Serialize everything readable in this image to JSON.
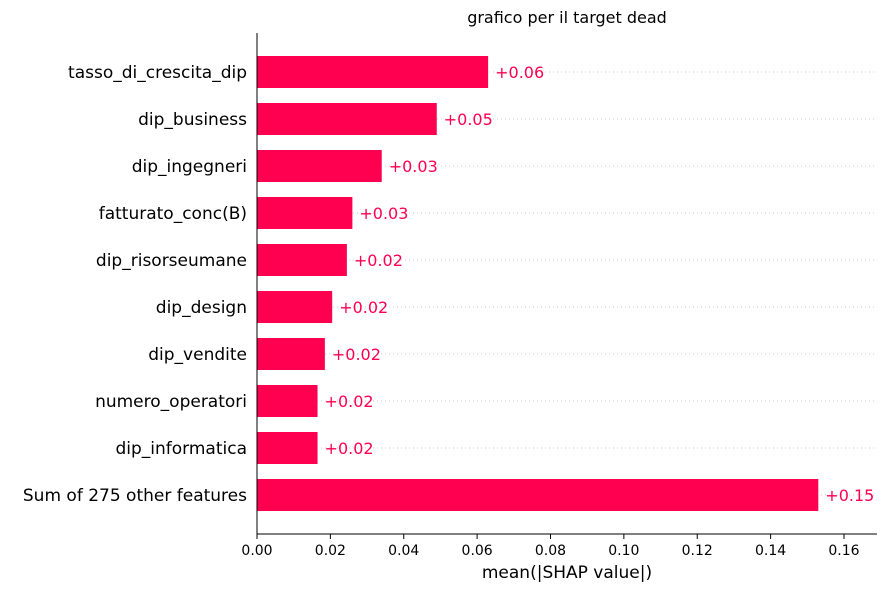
{
  "chart_data": {
    "type": "bar",
    "orientation": "horizontal",
    "title": "grafico per il target dead",
    "xlabel": "mean(|SHAP value|)",
    "ylabel": "",
    "xlim": [
      0.0,
      0.169
    ],
    "xticks": [
      "0.00",
      "0.02",
      "0.04",
      "0.06",
      "0.08",
      "0.10",
      "0.12",
      "0.14",
      "0.16"
    ],
    "grid": "dotted horizontal guides per row",
    "bar_color": "#ff0051",
    "categories": [
      "tasso_di_crescita_dip",
      "dip_business",
      "dip_ingegneri",
      "fatturato_conc(B)",
      "dip_risorseumane",
      "dip_design",
      "dip_vendite",
      "numero_operatori",
      "dip_informatica",
      "Sum of 275 other features"
    ],
    "values": [
      0.063,
      0.049,
      0.034,
      0.026,
      0.0245,
      0.0205,
      0.0185,
      0.0165,
      0.0165,
      0.153
    ],
    "value_labels": [
      "+0.06",
      "+0.05",
      "+0.03",
      "+0.03",
      "+0.02",
      "+0.02",
      "+0.02",
      "+0.02",
      "+0.02",
      "+0.15"
    ]
  }
}
